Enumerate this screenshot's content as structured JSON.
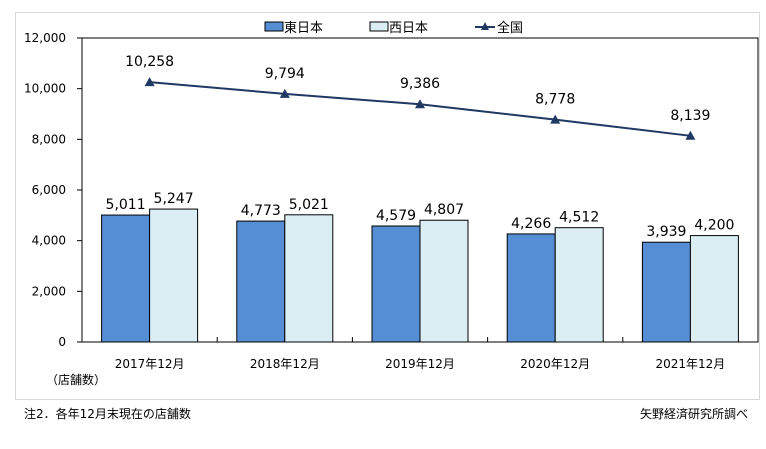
{
  "chart_data": {
    "type": "bar",
    "categories": [
      "2017年12月",
      "2018年12月",
      "2019年12月",
      "2020年12月",
      "2021年12月"
    ],
    "series": [
      {
        "name": "東日本",
        "type": "bar",
        "color": "#558ed5",
        "values": [
          5011,
          4773,
          4579,
          4266,
          3939
        ],
        "labels": [
          "5,011",
          "4,773",
          "4,579",
          "4,266",
          "3,939"
        ]
      },
      {
        "name": "西日本",
        "type": "bar",
        "color": "#dbeef4",
        "values": [
          5247,
          5021,
          4807,
          4512,
          4200
        ],
        "labels": [
          "5,247",
          "5,021",
          "4,807",
          "4,512",
          "4,200"
        ]
      },
      {
        "name": "全国",
        "type": "line",
        "color": "#1f3864",
        "values": [
          10258,
          9794,
          9386,
          8778,
          8139
        ],
        "labels": [
          "10,258",
          "9,794",
          "9,386",
          "8,778",
          "8,139"
        ]
      }
    ],
    "ylim": [
      0,
      12000
    ],
    "yticks": [
      0,
      2000,
      4000,
      6000,
      8000,
      10000,
      12000
    ],
    "ytick_labels": [
      "0",
      "2,000",
      "4,000",
      "6,000",
      "8,000",
      "10,000",
      "12,000"
    ],
    "ylabel": "（店舗数）",
    "legend": "top"
  },
  "footer": {
    "note": "注2．各年12月末現在の店舗数",
    "source": "矢野経済研究所調べ"
  }
}
